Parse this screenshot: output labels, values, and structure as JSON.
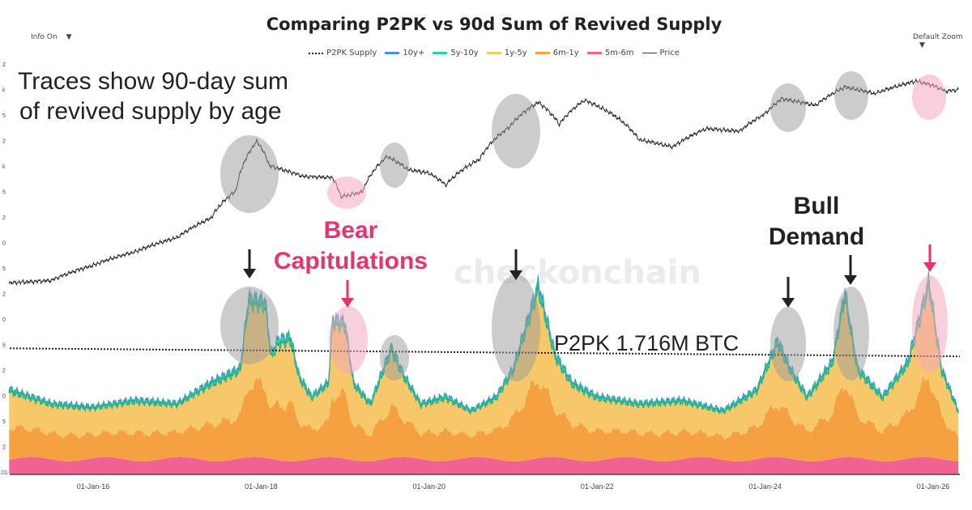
{
  "header": {
    "title": "Comparing P2PK vs 90d Sum of Revived Supply",
    "info_toggle": "Info On",
    "zoom_select": "Default Zoom"
  },
  "legend": [
    {
      "label": "P2PK Supply",
      "style": "dotted",
      "color": "#222222"
    },
    {
      "label": "10y+",
      "color": "#4a90e2"
    },
    {
      "label": "5y-10y",
      "color": "#2ed3a0"
    },
    {
      "label": "1y-5y",
      "color": "#f7c86a"
    },
    {
      "label": "6m-1y",
      "color": "#f5a142"
    },
    {
      "label": "5m-6m",
      "color": "#f06292"
    },
    {
      "label": "Price",
      "style": "line",
      "color": "#333333"
    }
  ],
  "annotations": {
    "traces_note_line1": "Traces show 90-day sum",
    "traces_note_line2": "of revived supply by age",
    "bear_label_line1": "Bear",
    "bear_label_line2": "Capitulations",
    "bull_label_line1": "Bull",
    "bull_label_line2": "Demand",
    "p2pk_label": "P2PK 1.716M BTC",
    "watermark": "checkonchain"
  },
  "chart_data": {
    "type": "area",
    "title": "Comparing P2PK vs 90d Sum of Revived Supply",
    "x_ticks": [
      "01-Jan-16",
      "01-Jan-18",
      "01-Jan-20",
      "01-Jan-22",
      "01-Jan-24",
      "01-Jan-26"
    ],
    "x_tick_years": [
      2016,
      2018,
      2020,
      2022,
      2024,
      2026
    ],
    "xlim": [
      2015.0,
      2026.3
    ],
    "y_tick_labels": [
      "2",
      "k",
      "5",
      "2",
      "k",
      "5",
      "2",
      "0",
      "5",
      "2",
      "0",
      "5",
      "2",
      "0",
      "5",
      "2",
      ".01"
    ],
    "p2pk_supply_mbtc": 1.716,
    "price_usd": [
      [
        2015.0,
        250
      ],
      [
        2015.5,
        270
      ],
      [
        2016.0,
        430
      ],
      [
        2016.5,
        650
      ],
      [
        2017.0,
        1000
      ],
      [
        2017.4,
        1800
      ],
      [
        2017.7,
        4200
      ],
      [
        2017.95,
        19000
      ],
      [
        2018.1,
        9000
      ],
      [
        2018.5,
        6500
      ],
      [
        2018.85,
        6300
      ],
      [
        2018.95,
        3500
      ],
      [
        2019.2,
        4000
      ],
      [
        2019.5,
        12000
      ],
      [
        2019.75,
        8000
      ],
      [
        2020.0,
        7200
      ],
      [
        2020.2,
        5000
      ],
      [
        2020.6,
        11000
      ],
      [
        2020.95,
        29000
      ],
      [
        2021.3,
        63000
      ],
      [
        2021.55,
        32000
      ],
      [
        2021.85,
        67000
      ],
      [
        2022.2,
        42000
      ],
      [
        2022.5,
        20000
      ],
      [
        2022.9,
        16000
      ],
      [
        2023.3,
        28000
      ],
      [
        2023.7,
        26000
      ],
      [
        2024.0,
        44000
      ],
      [
        2024.2,
        70000
      ],
      [
        2024.6,
        57000
      ],
      [
        2024.95,
        100000
      ],
      [
        2025.3,
        82000
      ],
      [
        2025.8,
        120000
      ],
      [
        2026.0,
        105000
      ],
      [
        2026.15,
        88000
      ],
      [
        2026.3,
        92000
      ]
    ],
    "total_revived_mbtc": [
      [
        2015.0,
        1.2
      ],
      [
        2015.5,
        1.0
      ],
      [
        2016.0,
        0.95
      ],
      [
        2016.5,
        1.05
      ],
      [
        2017.0,
        1.0
      ],
      [
        2017.4,
        1.3
      ],
      [
        2017.75,
        1.5
      ],
      [
        2017.85,
        2.5
      ],
      [
        2018.05,
        2.45
      ],
      [
        2018.12,
        1.7
      ],
      [
        2018.2,
        1.9
      ],
      [
        2018.35,
        1.95
      ],
      [
        2018.45,
        1.4
      ],
      [
        2018.6,
        1.1
      ],
      [
        2018.8,
        1.3
      ],
      [
        2018.85,
        2.2
      ],
      [
        2019.0,
        2.15
      ],
      [
        2019.1,
        1.3
      ],
      [
        2019.3,
        1.0
      ],
      [
        2019.55,
        1.8
      ],
      [
        2019.7,
        1.4
      ],
      [
        2019.9,
        1.0
      ],
      [
        2020.2,
        1.1
      ],
      [
        2020.5,
        0.9
      ],
      [
        2020.8,
        1.1
      ],
      [
        2021.0,
        1.5
      ],
      [
        2021.3,
        2.7
      ],
      [
        2021.5,
        1.7
      ],
      [
        2021.7,
        1.3
      ],
      [
        2022.0,
        1.1
      ],
      [
        2022.5,
        1.0
      ],
      [
        2023.0,
        1.05
      ],
      [
        2023.5,
        0.9
      ],
      [
        2023.9,
        1.2
      ],
      [
        2024.15,
        1.9
      ],
      [
        2024.3,
        1.5
      ],
      [
        2024.5,
        1.1
      ],
      [
        2024.8,
        1.6
      ],
      [
        2024.95,
        2.6
      ],
      [
        2025.1,
        1.5
      ],
      [
        2025.4,
        1.1
      ],
      [
        2025.7,
        1.6
      ],
      [
        2025.95,
        2.75
      ],
      [
        2026.1,
        1.5
      ],
      [
        2026.3,
        0.9
      ]
    ],
    "series": [
      {
        "name": "5m-6m",
        "color": "#f06292",
        "base_mbtc": 0.2
      },
      {
        "name": "6m-1y",
        "color": "#f5a142",
        "share_of_rest": 0.45
      },
      {
        "name": "1y-5y",
        "color": "#f7c86a",
        "share_of_rest": 0.48
      },
      {
        "name": "5y-10y",
        "color": "#2ed3a0",
        "share_of_rest": 0.05
      },
      {
        "name": "10y+",
        "color": "#4a90e2",
        "share_of_rest": 0.02
      }
    ],
    "legend_position": "top-center",
    "grid": false
  }
}
